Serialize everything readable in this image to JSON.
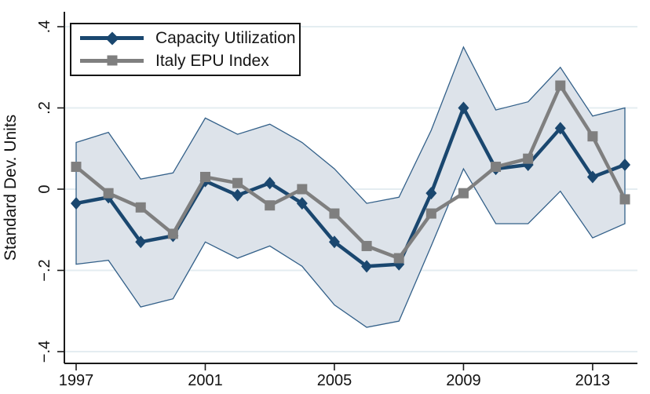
{
  "chart_data": {
    "type": "line",
    "title": "",
    "xlabel": "",
    "ylabel": "Standard Dev. Units",
    "x": [
      1997,
      1998,
      1999,
      2000,
      2001,
      2002,
      2003,
      2004,
      2005,
      2006,
      2007,
      2008,
      2009,
      2010,
      2011,
      2012,
      2013,
      2014
    ],
    "series": [
      {
        "name": "Capacity Utilization",
        "marker": "diamond",
        "color": "#1A476F",
        "values": [
          -0.035,
          -0.02,
          -0.13,
          -0.115,
          0.02,
          -0.015,
          0.015,
          -0.035,
          -0.13,
          -0.19,
          -0.185,
          -0.01,
          0.2,
          0.05,
          0.06,
          0.15,
          0.03,
          0.06
        ]
      },
      {
        "name": "Italy EPU Index",
        "marker": "square",
        "color": "#7F7F7F",
        "values": [
          0.055,
          -0.01,
          -0.045,
          -0.11,
          0.03,
          0.015,
          -0.04,
          0.0,
          -0.06,
          -0.14,
          -0.17,
          -0.06,
          -0.01,
          0.055,
          0.075,
          0.255,
          0.13,
          -0.025
        ]
      }
    ],
    "band": {
      "name": "confidence-band",
      "fill": "#DDE3EA",
      "edge_color": "#336089",
      "upper": [
        0.115,
        0.14,
        0.025,
        0.04,
        0.175,
        0.135,
        0.16,
        0.115,
        0.05,
        -0.035,
        -0.02,
        0.145,
        0.35,
        0.195,
        0.215,
        0.3,
        0.18,
        0.2
      ],
      "lower": [
        -0.185,
        -0.175,
        -0.29,
        -0.27,
        -0.13,
        -0.17,
        -0.14,
        -0.19,
        -0.285,
        -0.34,
        -0.325,
        -0.14,
        0.05,
        -0.085,
        -0.085,
        -0.005,
        -0.12,
        -0.085
      ]
    },
    "axes": {
      "xlim": [
        1997,
        2014
      ],
      "ylim": [
        -0.43,
        0.44
      ],
      "grid": true,
      "grid_color": "#E4EDF1",
      "axis_color": "#1A1A1A",
      "xticks": {
        "values": [
          1997,
          2001,
          2005,
          2009,
          2013
        ],
        "labels": [
          "1997",
          "2001",
          "2005",
          "2009",
          "2013"
        ]
      },
      "yticks": {
        "values": [
          0.4,
          0.2,
          0,
          -0.2,
          -0.4
        ],
        "labels": [
          ".4",
          ".2",
          "0",
          "−.2",
          "−.4"
        ]
      }
    },
    "legend_position": "top-left"
  }
}
